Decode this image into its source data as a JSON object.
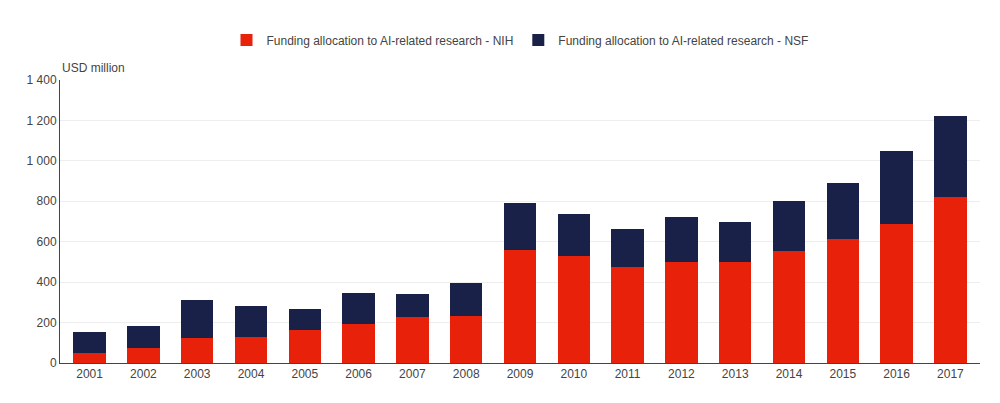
{
  "chart_data": {
    "type": "bar",
    "stacked": true,
    "ylabel": "USD million",
    "categories": [
      "2001",
      "2002",
      "2003",
      "2004",
      "2005",
      "2006",
      "2007",
      "2008",
      "2009",
      "2010",
      "2011",
      "2012",
      "2013",
      "2014",
      "2015",
      "2016",
      "2017"
    ],
    "series": [
      {
        "name": "Funding allocation to AI-related research - NIH",
        "color": "#e8210a",
        "values": [
          50,
          75,
          125,
          130,
          165,
          195,
          230,
          235,
          560,
          530,
          475,
          500,
          500,
          555,
          615,
          690,
          820
        ]
      },
      {
        "name": "Funding allocation to AI-related research - NSF",
        "color": "#1a2148",
        "values": [
          105,
          110,
          185,
          150,
          100,
          150,
          110,
          160,
          230,
          205,
          190,
          220,
          200,
          245,
          275,
          360,
          400
        ]
      }
    ],
    "ylim": [
      0,
      1400
    ],
    "yticks": [
      0,
      200,
      400,
      600,
      800,
      {
        "value": 1000,
        "label": "1 000"
      },
      {
        "value": 1200,
        "label": "1 200"
      },
      {
        "value": 1400,
        "label": "1 400"
      }
    ],
    "grid": true,
    "legend": "top"
  }
}
